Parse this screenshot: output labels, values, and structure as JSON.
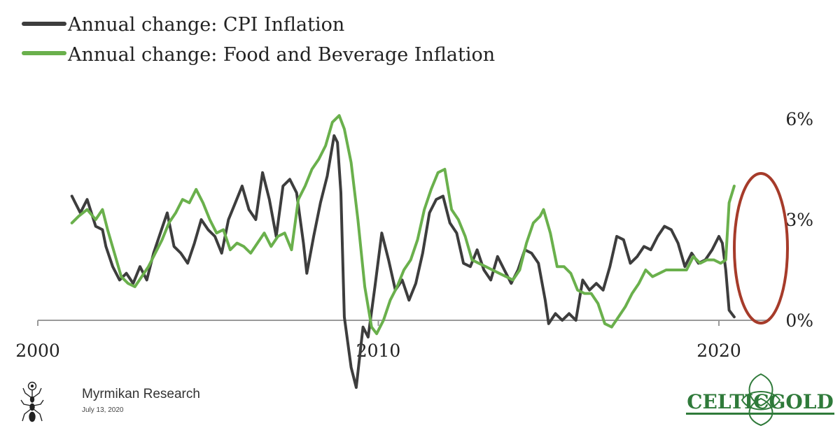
{
  "legend": [
    {
      "label": "Annual change: CPI Inflation",
      "color": "#3d3d3d"
    },
    {
      "label": "Annual change: Food and Beverage Inflation",
      "color": "#6ab04c"
    }
  ],
  "branding": {
    "research_name": "Myrmikan Research",
    "date": "July 13, 2020",
    "logo_text": "CELTICGOLD",
    "logo_color": "#2f7a3a"
  },
  "highlight_color": "#a63b2a",
  "chart_data": {
    "type": "line",
    "title": "",
    "xlabel": "",
    "ylabel": "",
    "xlim": [
      2000,
      2021.5
    ],
    "ylim": [
      -4,
      6.5
    ],
    "x_ticks": [
      {
        "value": 2000,
        "label": "2000"
      },
      {
        "value": 2010,
        "label": "2010"
      },
      {
        "value": 2020,
        "label": "2020"
      }
    ],
    "y_ticks": [
      {
        "value": 0,
        "label": "0%"
      },
      {
        "value": 3,
        "label": "3%"
      },
      {
        "value": 6,
        "label": "6%"
      }
    ],
    "y_axis_side": "right",
    "grid": false,
    "legend_position": "top-left",
    "annotation": "ellipse highlighting 2020",
    "series": [
      {
        "name": "Annual change: CPI Inflation",
        "color": "#3d3d3d",
        "points": [
          [
            2001.0,
            3.7
          ],
          [
            2001.1,
            3.5
          ],
          [
            2001.25,
            3.2
          ],
          [
            2001.45,
            3.6
          ],
          [
            2001.7,
            2.8
          ],
          [
            2001.9,
            2.7
          ],
          [
            2002.0,
            2.2
          ],
          [
            2002.2,
            1.6
          ],
          [
            2002.4,
            1.2
          ],
          [
            2002.6,
            1.4
          ],
          [
            2002.8,
            1.1
          ],
          [
            2003.0,
            1.6
          ],
          [
            2003.2,
            1.2
          ],
          [
            2003.4,
            2.0
          ],
          [
            2003.6,
            2.6
          ],
          [
            2003.8,
            3.2
          ],
          [
            2004.0,
            2.2
          ],
          [
            2004.2,
            2.0
          ],
          [
            2004.4,
            1.7
          ],
          [
            2004.6,
            2.3
          ],
          [
            2004.8,
            3.0
          ],
          [
            2005.0,
            2.7
          ],
          [
            2005.2,
            2.5
          ],
          [
            2005.4,
            2.0
          ],
          [
            2005.6,
            3.0
          ],
          [
            2005.8,
            3.5
          ],
          [
            2006.0,
            4.0
          ],
          [
            2006.2,
            3.3
          ],
          [
            2006.4,
            3.0
          ],
          [
            2006.6,
            4.4
          ],
          [
            2006.8,
            3.6
          ],
          [
            2007.0,
            2.5
          ],
          [
            2007.2,
            4.0
          ],
          [
            2007.4,
            4.2
          ],
          [
            2007.6,
            3.8
          ],
          [
            2007.8,
            2.3
          ],
          [
            2007.9,
            1.4
          ],
          [
            2008.1,
            2.5
          ],
          [
            2008.3,
            3.5
          ],
          [
            2008.5,
            4.3
          ],
          [
            2008.7,
            5.5
          ],
          [
            2008.8,
            5.3
          ],
          [
            2008.9,
            3.8
          ],
          [
            2009.0,
            0.1
          ],
          [
            2009.2,
            -1.4
          ],
          [
            2009.35,
            -2.0
          ],
          [
            2009.55,
            -0.2
          ],
          [
            2009.7,
            -0.5
          ],
          [
            2009.9,
            1.0
          ],
          [
            2010.1,
            2.6
          ],
          [
            2010.3,
            1.8
          ],
          [
            2010.5,
            0.9
          ],
          [
            2010.7,
            1.2
          ],
          [
            2010.9,
            0.6
          ],
          [
            2011.1,
            1.1
          ],
          [
            2011.3,
            2.0
          ],
          [
            2011.5,
            3.2
          ],
          [
            2011.7,
            3.6
          ],
          [
            2011.9,
            3.7
          ],
          [
            2012.1,
            2.9
          ],
          [
            2012.3,
            2.6
          ],
          [
            2012.5,
            1.7
          ],
          [
            2012.7,
            1.6
          ],
          [
            2012.9,
            2.1
          ],
          [
            2013.1,
            1.5
          ],
          [
            2013.3,
            1.2
          ],
          [
            2013.5,
            1.9
          ],
          [
            2013.7,
            1.5
          ],
          [
            2013.9,
            1.1
          ],
          [
            2014.1,
            1.5
          ],
          [
            2014.3,
            2.1
          ],
          [
            2014.5,
            2.0
          ],
          [
            2014.7,
            1.7
          ],
          [
            2014.9,
            0.6
          ],
          [
            2015.0,
            -0.1
          ],
          [
            2015.2,
            0.2
          ],
          [
            2015.4,
            0.0
          ],
          [
            2015.6,
            0.2
          ],
          [
            2015.8,
            0.0
          ],
          [
            2016.0,
            1.2
          ],
          [
            2016.2,
            0.9
          ],
          [
            2016.4,
            1.1
          ],
          [
            2016.6,
            0.9
          ],
          [
            2016.8,
            1.6
          ],
          [
            2017.0,
            2.5
          ],
          [
            2017.2,
            2.4
          ],
          [
            2017.4,
            1.7
          ],
          [
            2017.6,
            1.9
          ],
          [
            2017.8,
            2.2
          ],
          [
            2018.0,
            2.1
          ],
          [
            2018.2,
            2.5
          ],
          [
            2018.4,
            2.8
          ],
          [
            2018.6,
            2.7
          ],
          [
            2018.8,
            2.3
          ],
          [
            2019.0,
            1.6
          ],
          [
            2019.2,
            2.0
          ],
          [
            2019.4,
            1.7
          ],
          [
            2019.6,
            1.8
          ],
          [
            2019.8,
            2.1
          ],
          [
            2020.0,
            2.5
          ],
          [
            2020.1,
            2.3
          ],
          [
            2020.2,
            1.5
          ],
          [
            2020.3,
            0.3
          ],
          [
            2020.45,
            0.1
          ]
        ]
      },
      {
        "name": "Annual change: Food and Beverage Inflation",
        "color": "#6ab04c",
        "points": [
          [
            2001.0,
            2.9
          ],
          [
            2001.2,
            3.1
          ],
          [
            2001.45,
            3.3
          ],
          [
            2001.7,
            3.0
          ],
          [
            2001.9,
            3.3
          ],
          [
            2002.05,
            2.7
          ],
          [
            2002.25,
            2.0
          ],
          [
            2002.45,
            1.3
          ],
          [
            2002.65,
            1.1
          ],
          [
            2002.85,
            1.0
          ],
          [
            2003.05,
            1.3
          ],
          [
            2003.25,
            1.6
          ],
          [
            2003.45,
            2.0
          ],
          [
            2003.65,
            2.4
          ],
          [
            2003.85,
            2.9
          ],
          [
            2004.05,
            3.2
          ],
          [
            2004.25,
            3.6
          ],
          [
            2004.45,
            3.5
          ],
          [
            2004.65,
            3.9
          ],
          [
            2004.85,
            3.5
          ],
          [
            2005.05,
            3.0
          ],
          [
            2005.25,
            2.6
          ],
          [
            2005.45,
            2.7
          ],
          [
            2005.65,
            2.1
          ],
          [
            2005.85,
            2.3
          ],
          [
            2006.05,
            2.2
          ],
          [
            2006.25,
            2.0
          ],
          [
            2006.45,
            2.3
          ],
          [
            2006.65,
            2.6
          ],
          [
            2006.85,
            2.2
          ],
          [
            2007.05,
            2.5
          ],
          [
            2007.25,
            2.6
          ],
          [
            2007.45,
            2.1
          ],
          [
            2007.65,
            3.6
          ],
          [
            2007.85,
            4.0
          ],
          [
            2008.05,
            4.5
          ],
          [
            2008.25,
            4.8
          ],
          [
            2008.45,
            5.2
          ],
          [
            2008.65,
            5.9
          ],
          [
            2008.85,
            6.1
          ],
          [
            2009.0,
            5.7
          ],
          [
            2009.2,
            4.7
          ],
          [
            2009.4,
            3.0
          ],
          [
            2009.6,
            1.0
          ],
          [
            2009.8,
            -0.2
          ],
          [
            2009.95,
            -0.4
          ],
          [
            2010.15,
            0.0
          ],
          [
            2010.35,
            0.6
          ],
          [
            2010.55,
            1.0
          ],
          [
            2010.75,
            1.5
          ],
          [
            2010.95,
            1.8
          ],
          [
            2011.15,
            2.4
          ],
          [
            2011.35,
            3.3
          ],
          [
            2011.55,
            3.9
          ],
          [
            2011.75,
            4.4
          ],
          [
            2011.95,
            4.5
          ],
          [
            2012.15,
            3.3
          ],
          [
            2012.35,
            3.0
          ],
          [
            2012.55,
            2.5
          ],
          [
            2012.75,
            1.8
          ],
          [
            2012.95,
            1.7
          ],
          [
            2013.15,
            1.6
          ],
          [
            2013.35,
            1.5
          ],
          [
            2013.55,
            1.4
          ],
          [
            2013.75,
            1.3
          ],
          [
            2013.95,
            1.2
          ],
          [
            2014.15,
            1.5
          ],
          [
            2014.35,
            2.3
          ],
          [
            2014.55,
            2.9
          ],
          [
            2014.75,
            3.1
          ],
          [
            2014.85,
            3.3
          ],
          [
            2015.05,
            2.6
          ],
          [
            2015.25,
            1.6
          ],
          [
            2015.45,
            1.6
          ],
          [
            2015.65,
            1.4
          ],
          [
            2015.85,
            0.9
          ],
          [
            2016.05,
            0.8
          ],
          [
            2016.25,
            0.8
          ],
          [
            2016.45,
            0.5
          ],
          [
            2016.65,
            -0.1
          ],
          [
            2016.85,
            -0.2
          ],
          [
            2017.05,
            0.1
          ],
          [
            2017.25,
            0.4
          ],
          [
            2017.45,
            0.8
          ],
          [
            2017.65,
            1.1
          ],
          [
            2017.85,
            1.5
          ],
          [
            2018.05,
            1.3
          ],
          [
            2018.25,
            1.4
          ],
          [
            2018.45,
            1.5
          ],
          [
            2018.65,
            1.5
          ],
          [
            2018.85,
            1.5
          ],
          [
            2019.05,
            1.5
          ],
          [
            2019.25,
            1.9
          ],
          [
            2019.45,
            1.7
          ],
          [
            2019.65,
            1.8
          ],
          [
            2019.85,
            1.8
          ],
          [
            2020.05,
            1.7
          ],
          [
            2020.2,
            1.8
          ],
          [
            2020.3,
            3.5
          ],
          [
            2020.45,
            4.0
          ]
        ]
      }
    ]
  }
}
